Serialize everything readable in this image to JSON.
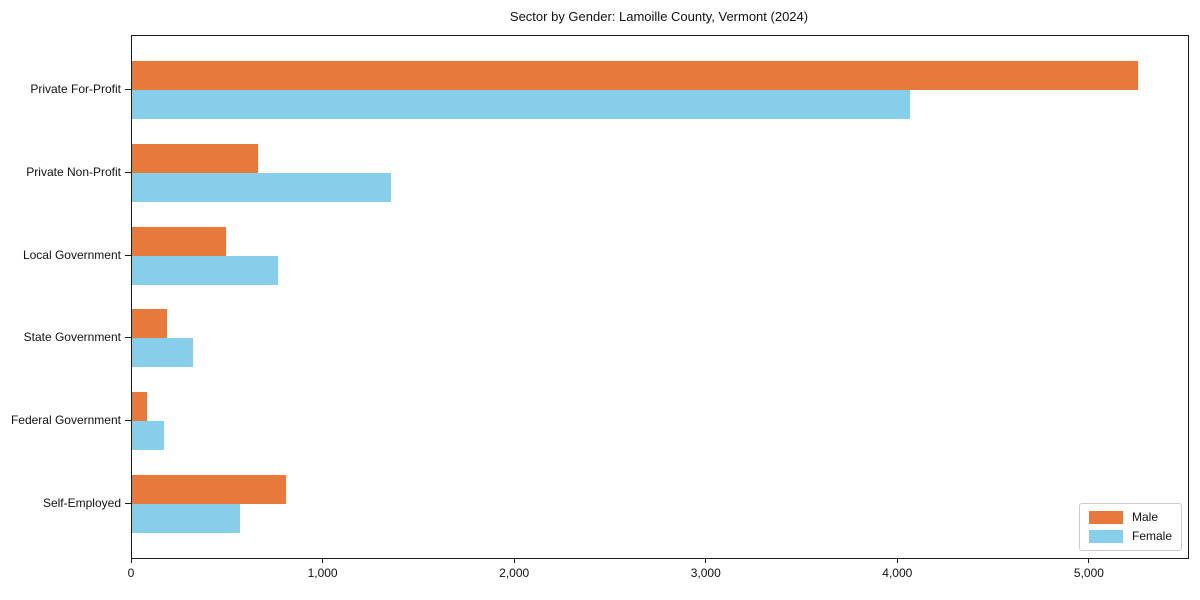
{
  "title": "Sector by Gender: Lamoille County, Vermont (2024)",
  "chart_data": {
    "type": "bar",
    "orientation": "horizontal",
    "title": "Sector by Gender: Lamoille County, Vermont (2024)",
    "categories": [
      "Private For-Profit",
      "Private Non-Profit",
      "Local Government",
      "State Government",
      "Federal Government",
      "Self-Employed"
    ],
    "series": [
      {
        "name": "Male",
        "color": "#E8793D",
        "values": [
          5250,
          660,
          490,
          185,
          80,
          805
        ]
      },
      {
        "name": "Female",
        "color": "#87CEEB",
        "values": [
          4060,
          1350,
          760,
          320,
          165,
          565
        ]
      }
    ],
    "xlabel": "",
    "ylabel": "",
    "xlim": [
      0,
      5512
    ],
    "xticks": [
      0,
      1000,
      2000,
      3000,
      4000,
      5000
    ],
    "xtick_labels": [
      "0",
      "1,000",
      "2,000",
      "3,000",
      "4,000",
      "5,000"
    ],
    "grid": false,
    "legend_position": "lower right",
    "plot_border": true
  }
}
